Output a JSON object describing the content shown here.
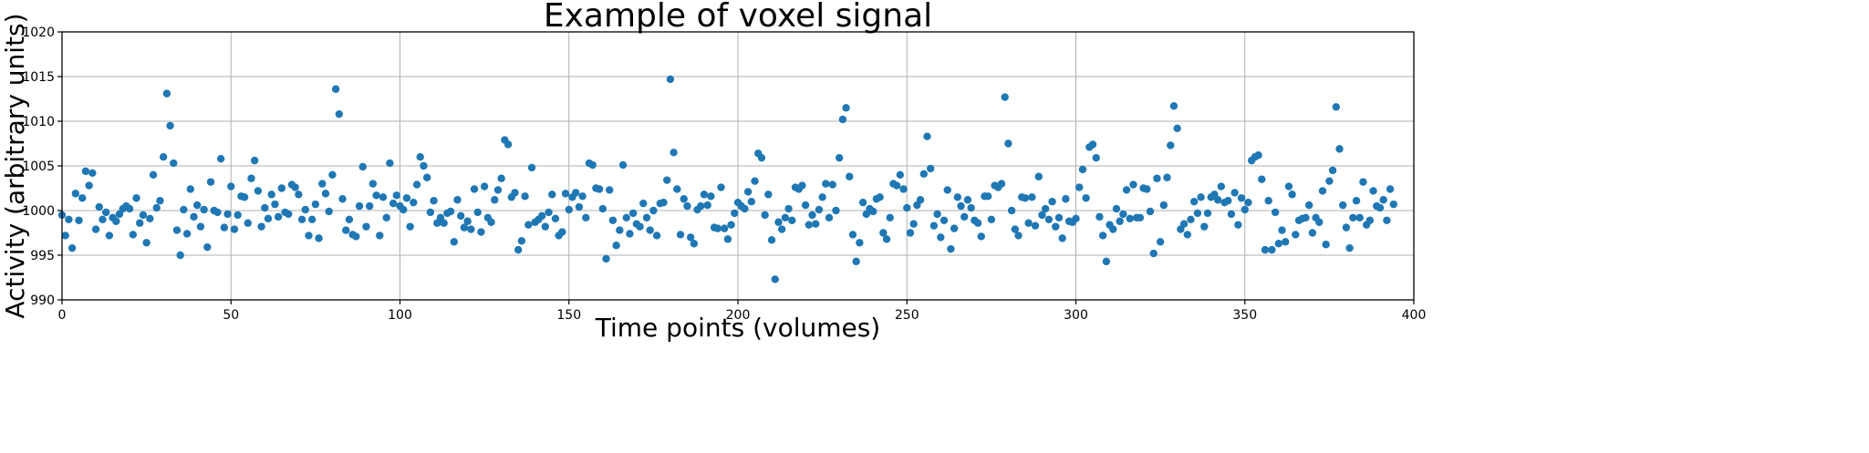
{
  "chart_data": {
    "type": "scatter",
    "title": "Example of voxel signal",
    "xlabel": "Time points (volumes)",
    "ylabel": "Activity (arbitrary units)",
    "xlim": [
      0,
      400
    ],
    "ylim": [
      990,
      1020
    ],
    "xticks": [
      0,
      50,
      100,
      150,
      200,
      250,
      300,
      350,
      400
    ],
    "yticks": [
      990,
      995,
      1000,
      1005,
      1010,
      1015,
      1020
    ],
    "grid": true,
    "marker_color": "#1f77b4",
    "series": [
      {
        "values": [
          999.5,
          997.2,
          999.0,
          995.8,
          1001.9,
          998.9,
          1001.4,
          1004.4,
          1002.8,
          1004.2,
          997.9,
          1000.4,
          999.0,
          999.8,
          997.2,
          999.2,
          998.8,
          999.6,
          1000.2,
          1000.5,
          1000.2,
          997.3,
          1001.4,
          998.6,
          999.5,
          996.4,
          999.1,
          1004.0,
          1000.3,
          1001.1,
          1006.0,
          1013.1,
          1009.5,
          1005.3,
          997.8,
          995.0,
          1000.1,
          997.4,
          1002.4,
          999.3,
          1000.6,
          998.2,
          1000.1,
          995.9,
          1003.2,
          1000.0,
          999.8,
          1005.8,
          998.1,
          999.6,
          1002.7,
          997.9,
          999.5,
          1001.6,
          1001.5,
          998.6,
          1003.6,
          1005.6,
          1002.2,
          998.2,
          1000.3,
          999.1,
          1001.8,
          1000.7,
          999.3,
          1002.5,
          999.8,
          999.6,
          1002.9,
          1002.6,
          1001.8,
          999.0,
          1000.1,
          997.2,
          999.0,
          1000.7,
          996.9,
          1003.0,
          1001.9,
          999.9,
          1004.0,
          1013.6,
          1010.8,
          1001.3,
          997.8,
          999.0,
          997.3,
          997.1,
          1000.5,
          1004.9,
          998.2,
          1000.5,
          1003.0,
          1001.7,
          997.2,
          1001.5,
          999.2,
          1005.3,
          1000.8,
          1001.7,
          1000.5,
          1000.1,
          1001.4,
          998.2,
          1000.9,
          1002.9,
          1006.0,
          1005.0,
          1003.7,
          999.8,
          1001.1,
          998.6,
          999.2,
          998.6,
          999.7,
          999.9,
          996.5,
          1001.2,
          999.4,
          998.1,
          998.8,
          997.9,
          1002.4,
          999.8,
          997.6,
          1002.7,
          999.2,
          998.7,
          1001.2,
          1002.3,
          1003.6,
          1007.9,
          1007.4,
          1001.5,
          1002.0,
          995.6,
          996.6,
          1001.6,
          998.4,
          1004.8,
          998.7,
          999.0,
          999.4,
          998.2,
          999.8,
          1001.8,
          999.1,
          997.2,
          997.6,
          1001.9,
          1000.1,
          1001.5,
          1002.0,
          1000.4,
          1001.6,
          999.2,
          1005.3,
          1005.1,
          1002.5,
          1002.4,
          1000.2,
          994.6,
          1002.3,
          998.9,
          996.1,
          997.8,
          1005.1,
          999.2,
          997.4,
          999.7,
          998.5,
          998.2,
          1000.8,
          999.2,
          997.8,
          1000.0,
          997.2,
          1000.8,
          1000.9,
          1003.4,
          1014.7,
          1006.5,
          1002.4,
          997.3,
          1001.3,
          1000.5,
          997.0,
          996.3,
          1000.1,
          1000.5,
          1001.8,
          1000.6,
          1001.6,
          998.1,
          998.0,
          1002.6,
          998.0,
          996.8,
          998.4,
          999.7,
          1000.9,
          1000.5,
          1000.2,
          1002.1,
          1001.0,
          1003.3,
          1006.4,
          1005.9,
          999.5,
          1001.8,
          996.7,
          992.3,
          998.7,
          997.9,
          999.2,
          1000.2,
          998.9,
          1002.6,
          1002.4,
          1002.8,
          1000.6,
          998.4,
          999.5,
          998.5,
          1000.1,
          1001.5,
          1003.0,
          999.2,
          1002.9,
          1000.0,
          1005.9,
          1010.2,
          1011.5,
          1003.8,
          997.3,
          994.3,
          996.4,
          1000.9,
          999.6,
          1000.2,
          999.9,
          1001.3,
          1001.5,
          997.5,
          996.8,
          999.2,
          1003.0,
          1002.8,
          1004.0,
          1002.4,
          1000.3,
          997.5,
          998.5,
          1000.6,
          1001.2,
          1004.1,
          1008.3,
          1004.7,
          998.3,
          999.6,
          997.0,
          998.9,
          1002.3,
          995.7,
          998.0,
          1001.5,
          1000.5,
          999.3,
          1001.2,
          1000.3,
          998.9,
          998.6,
          997.1,
          1001.6,
          1001.6,
          999.0,
          1002.8,
          1002.6,
          1003.0,
          1012.7,
          1007.5,
          1000.0,
          997.9,
          997.2,
          1001.5,
          1001.4,
          998.6,
          1001.5,
          998.3,
          1003.8,
          999.5,
          1000.2,
          999.0,
          1001.0,
          998.2,
          999.2,
          996.9,
          1001.3,
          998.8,
          998.7,
          999.1,
          1002.6,
          1004.6,
          1001.4,
          1007.1,
          1007.4,
          1005.9,
          999.3,
          997.2,
          994.3,
          998.4,
          997.9,
          1000.2,
          998.8,
          999.6,
          1002.3,
          999.1,
          1002.9,
          999.2,
          999.2,
          1002.5,
          1002.4,
          999.9,
          995.2,
          1003.6,
          996.5,
          1000.6,
          1003.7,
          1007.3,
          1011.7,
          1009.2,
          997.9,
          998.5,
          997.3,
          999.0,
          1001.0,
          999.7,
          1001.5,
          998.2,
          999.7,
          1001.5,
          1001.8,
          1001.2,
          1002.7,
          1000.9,
          1001.1,
          999.6,
          1002.0,
          998.4,
          1001.4,
          1000.1,
          1000.9,
          1005.6,
          1006.0,
          1006.2,
          1003.5,
          995.6,
          1001.1,
          995.6,
          999.8,
          996.3,
          997.8,
          996.5,
          1002.7,
          1001.8,
          997.3,
          998.9,
          999.1,
          999.2,
          1000.6,
          997.5,
          999.2,
          998.7,
          1002.2,
          996.2,
          1003.3,
          1004.5,
          1011.6,
          1006.9,
          1000.6,
          998.1,
          995.8,
          999.2,
          1001.1,
          999.2,
          1003.2,
          998.4,
          998.9,
          1002.2,
          1000.5,
          1000.3,
          1001.2,
          998.9,
          1002.4,
          1000.7
        ]
      }
    ]
  }
}
